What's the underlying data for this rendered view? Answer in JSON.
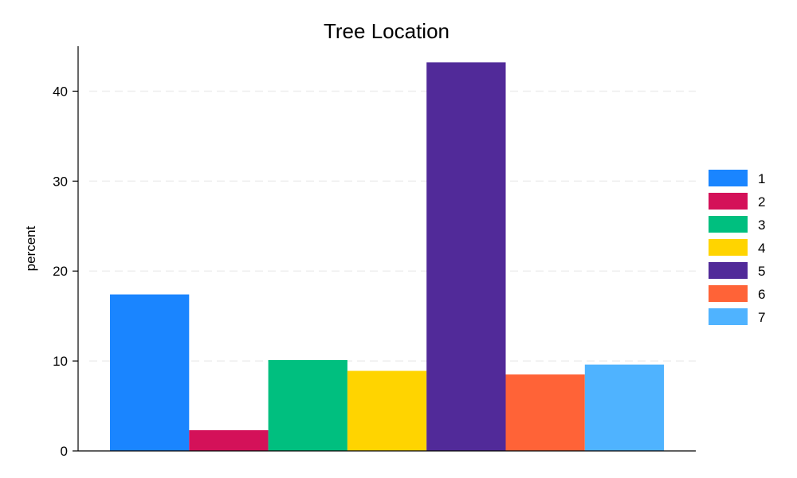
{
  "chart_data": {
    "type": "bar",
    "title": "Tree Location",
    "xlabel": "",
    "ylabel": "percent",
    "ylim": [
      0,
      45
    ],
    "yticks": [
      0,
      10,
      20,
      30,
      40
    ],
    "grid": true,
    "legend_position": "right",
    "categories": [
      "1",
      "2",
      "3",
      "4",
      "5",
      "6",
      "7"
    ],
    "values": [
      17.4,
      2.3,
      10.1,
      8.9,
      43.2,
      8.5,
      9.6
    ],
    "colors": [
      "#1a85ff",
      "#d41159",
      "#00bf7f",
      "#ffd400",
      "#512a99",
      "#ff6337",
      "#4fb3ff"
    ]
  }
}
